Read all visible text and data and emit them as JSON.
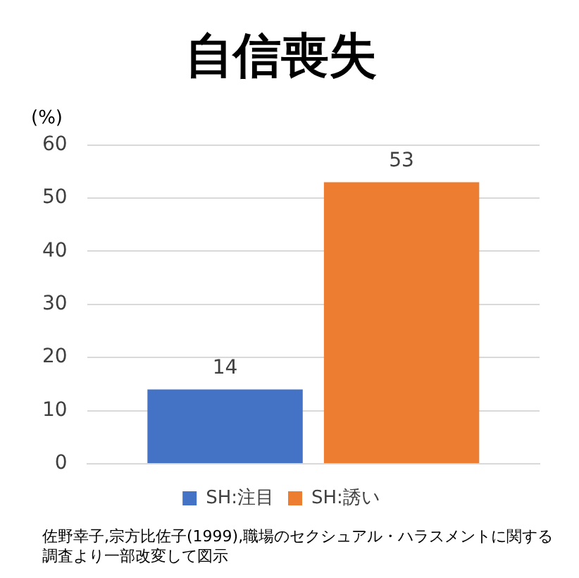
{
  "chart_data": {
    "type": "bar",
    "title": "自信喪失",
    "ylabel": "(%)",
    "categories": [
      null
    ],
    "series": [
      {
        "name": "SH:注目",
        "color": "#4472c4",
        "values": [
          14
        ]
      },
      {
        "name": "SH:誘い",
        "color": "#ed7d31",
        "values": [
          53
        ]
      }
    ],
    "ylim": [
      0,
      60
    ],
    "yticks": [
      0,
      10,
      20,
      30,
      40,
      50,
      60
    ],
    "grid": "y",
    "legend": "bottom",
    "data_labels": true,
    "annotations": [
      "佐野幸子,宗方比佐子(1999),職場のセクシュアル・ハラスメントに関する調査より一部改変して図示"
    ]
  }
}
